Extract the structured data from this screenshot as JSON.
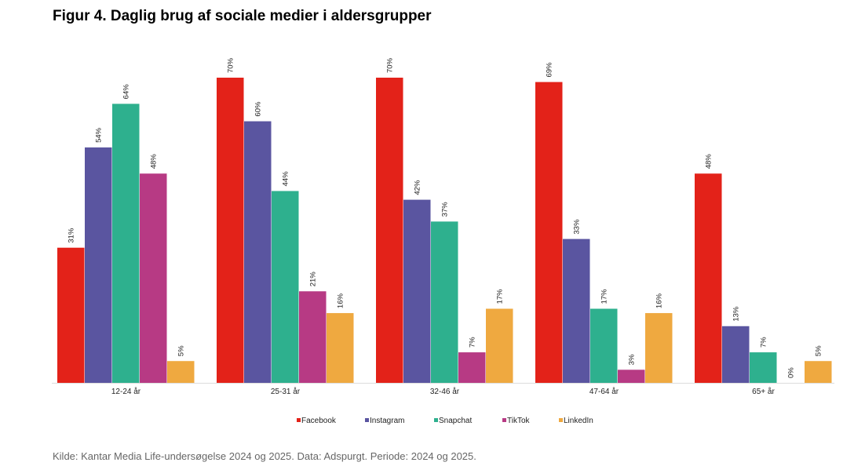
{
  "chart_data": {
    "type": "bar",
    "title": "Figur 4. Daglig brug af sociale medier i aldersgrupper",
    "source": "Kilde: Kantar Media Life-undersøgelse 2024 og 2025. Data: Adspurgt. Periode: 2024 og 2025.",
    "categories": [
      "12-24 år",
      "25-31 år",
      "32-46 år",
      "47-64 år",
      "65+ år"
    ],
    "series": [
      {
        "name": "Facebook",
        "color": "#e32219",
        "values": [
          31,
          70,
          70,
          69,
          48
        ]
      },
      {
        "name": "Instagram",
        "color": "#5a55a0",
        "values": [
          54,
          60,
          42,
          33,
          13
        ]
      },
      {
        "name": "Snapchat",
        "color": "#2eb08e",
        "values": [
          64,
          44,
          37,
          17,
          7
        ]
      },
      {
        "name": "TikTok",
        "color": "#b73a84",
        "values": [
          48,
          21,
          7,
          3,
          0
        ]
      },
      {
        "name": "LinkedIn",
        "color": "#efa940",
        "values": [
          5,
          16,
          17,
          16,
          5
        ]
      }
    ],
    "value_suffix": "%",
    "ylim": [
      0,
      70
    ],
    "grid": false,
    "legend": "bottom-center"
  }
}
